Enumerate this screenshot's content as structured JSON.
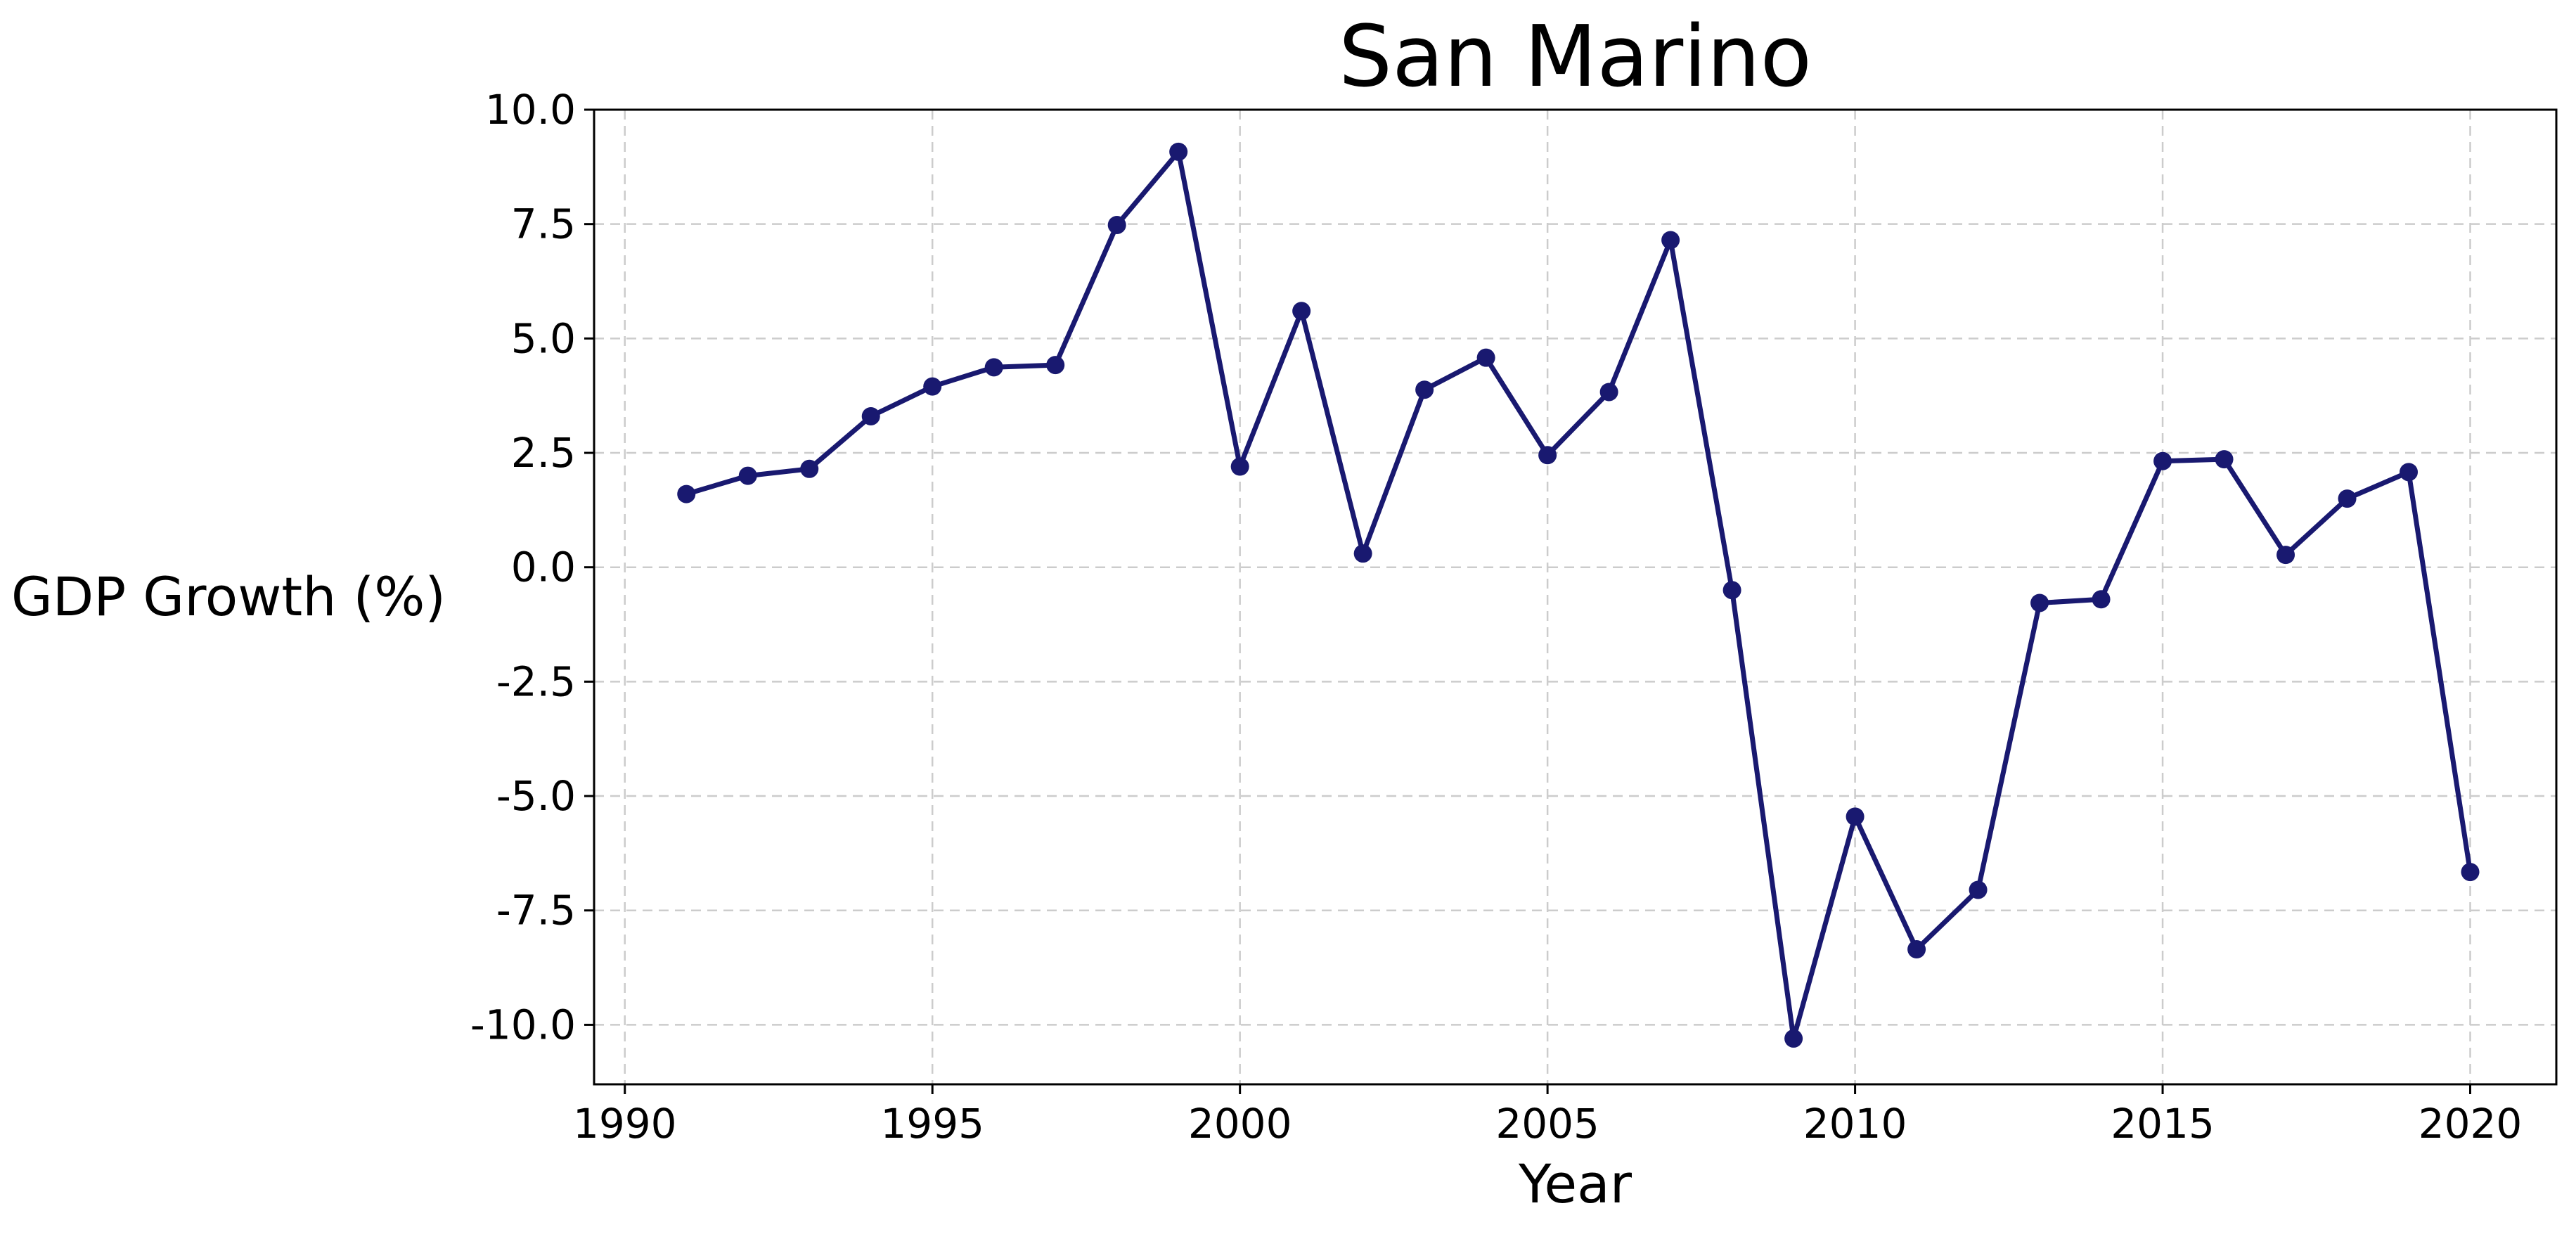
{
  "chart_data": {
    "type": "line",
    "title": "San Marino",
    "xlabel": "Year",
    "ylabel": "GDP Growth (%)",
    "xlim": [
      1989.5,
      2021.4
    ],
    "ylim": [
      -11.3,
      10.0
    ],
    "xticks": [
      1990,
      1995,
      2000,
      2005,
      2010,
      2015,
      2020
    ],
    "xtick_labels": [
      "1990",
      "1995",
      "2000",
      "2005",
      "2010",
      "2015",
      "2020"
    ],
    "yticks": [
      10.0,
      7.5,
      5.0,
      2.5,
      0.0,
      -2.5,
      -5.0,
      -7.5,
      -10.0
    ],
    "ytick_labels": [
      "10.0",
      "7.5",
      "5.0",
      "2.5",
      "0.0",
      "-2.5",
      "-5.0",
      "-7.5",
      "-10.0"
    ],
    "grid": true,
    "series": [
      {
        "color": "#191970",
        "marker": "circle",
        "x": [
          1991,
          1992,
          1993,
          1994,
          1995,
          1996,
          1997,
          1998,
          1999,
          2000,
          2001,
          2002,
          2003,
          2004,
          2005,
          2006,
          2007,
          2008,
          2009,
          2010,
          2011,
          2012,
          2013,
          2014,
          2015,
          2016,
          2017,
          2018,
          2019,
          2020
        ],
        "y": [
          1.6,
          2.0,
          2.15,
          3.3,
          3.95,
          4.37,
          4.42,
          7.48,
          9.08,
          2.2,
          5.6,
          0.3,
          3.88,
          4.58,
          2.45,
          3.83,
          7.15,
          -0.5,
          -10.3,
          -5.45,
          -8.35,
          -7.05,
          -0.78,
          -0.7,
          2.32,
          2.36,
          0.27,
          1.5,
          2.08,
          -6.66
        ]
      }
    ]
  }
}
